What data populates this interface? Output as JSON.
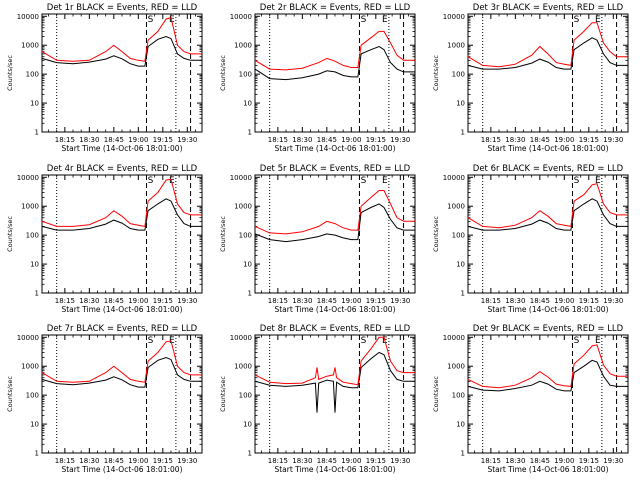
{
  "colors": {
    "events": "#000000",
    "lld": "#ff0000",
    "axes": "#000000",
    "background": "#ffffff"
  },
  "shared": {
    "ylabel": "Counts/sec",
    "xlabel": "Start Time (14-Oct-06 18:01:00)",
    "x_tick_labels": [
      "18:15",
      "18:30",
      "18:45",
      "19:00",
      "19:15",
      "19:30"
    ],
    "y_tick_labels": [
      "1",
      "10",
      "100",
      "1000",
      "10000"
    ],
    "y_scale": "log",
    "ylim": [
      1,
      12000
    ],
    "xlim": [
      "18:01",
      "19:39"
    ],
    "marker_labels": [
      "S",
      "E"
    ],
    "dotted_lines_at": [
      "18:10",
      "19:23"
    ],
    "dashed_lines_at": [
      "19:05",
      "19:32"
    ]
  },
  "chart_data": [
    {
      "type": "line",
      "title": "Det 1r BLACK = Events, RED = LLD",
      "x": [
        "18:01",
        "18:10",
        "18:20",
        "18:30",
        "18:40",
        "18:45",
        "18:50",
        "18:55",
        "19:00",
        "19:04",
        "19:06",
        "19:12",
        "19:17",
        "19:20",
        "19:24",
        "19:28",
        "19:32",
        "19:36",
        "19:39"
      ],
      "series": [
        {
          "name": "BLACK = Events",
          "values": [
            350,
            250,
            230,
            260,
            330,
            430,
            340,
            230,
            190,
            190,
            900,
            1600,
            2000,
            1700,
            500,
            350,
            300,
            300,
            300
          ]
        },
        {
          "name": "RED = LLD",
          "values": [
            600,
            300,
            280,
            300,
            600,
            1000,
            600,
            350,
            300,
            280,
            1500,
            3000,
            8000,
            9000,
            1000,
            600,
            500,
            500,
            500
          ]
        }
      ]
    },
    {
      "type": "line",
      "title": "Det 2r BLACK = Events, RED = LLD",
      "x": [
        "18:01",
        "18:10",
        "18:20",
        "18:30",
        "18:40",
        "18:45",
        "18:50",
        "18:55",
        "19:00",
        "19:04",
        "19:06",
        "19:12",
        "19:17",
        "19:20",
        "19:24",
        "19:28",
        "19:32",
        "19:36",
        "19:39"
      ],
      "series": [
        {
          "name": "BLACK = Events",
          "values": [
            150,
            70,
            65,
            75,
            100,
            130,
            120,
            90,
            80,
            80,
            500,
            700,
            900,
            700,
            250,
            150,
            120,
            120,
            120
          ]
        },
        {
          "name": "RED = LLD",
          "values": [
            300,
            150,
            140,
            160,
            250,
            350,
            280,
            200,
            170,
            170,
            1000,
            1800,
            3000,
            3000,
            1200,
            450,
            300,
            300,
            300
          ]
        }
      ]
    },
    {
      "type": "line",
      "title": "Det 3r BLACK = Events, RED = LLD",
      "x": [
        "18:01",
        "18:10",
        "18:20",
        "18:30",
        "18:40",
        "18:45",
        "18:50",
        "18:55",
        "19:00",
        "19:04",
        "19:06",
        "19:12",
        "19:17",
        "19:20",
        "19:24",
        "19:28",
        "19:32",
        "19:36",
        "19:39"
      ],
      "series": [
        {
          "name": "BLACK = Events",
          "values": [
            200,
            150,
            150,
            170,
            240,
            330,
            260,
            170,
            150,
            150,
            700,
            1200,
            1800,
            1500,
            500,
            250,
            200,
            200,
            200
          ]
        },
        {
          "name": "RED = LLD",
          "values": [
            400,
            200,
            180,
            220,
            450,
            900,
            500,
            250,
            220,
            200,
            1500,
            3000,
            6000,
            6000,
            1200,
            600,
            400,
            400,
            400
          ]
        }
      ]
    },
    {
      "type": "line",
      "title": "Det 4r BLACK = Events, RED = LLD",
      "x": [
        "18:01",
        "18:10",
        "18:20",
        "18:30",
        "18:40",
        "18:45",
        "18:50",
        "18:55",
        "19:00",
        "19:04",
        "19:06",
        "19:12",
        "19:17",
        "19:20",
        "19:24",
        "19:28",
        "19:32",
        "19:36",
        "19:39"
      ],
      "series": [
        {
          "name": "BLACK = Events",
          "values": [
            200,
            150,
            150,
            170,
            240,
            330,
            260,
            170,
            150,
            150,
            700,
            1200,
            1800,
            1500,
            500,
            250,
            200,
            200,
            200
          ]
        },
        {
          "name": "RED = LLD",
          "values": [
            300,
            200,
            200,
            230,
            400,
            700,
            450,
            250,
            220,
            200,
            1500,
            3000,
            8000,
            8500,
            1200,
            600,
            500,
            500,
            500
          ]
        }
      ]
    },
    {
      "type": "line",
      "title": "Det 5r BLACK = Events, RED = LLD",
      "x": [
        "18:01",
        "18:10",
        "18:20",
        "18:30",
        "18:40",
        "18:45",
        "18:50",
        "18:55",
        "19:00",
        "19:04",
        "19:06",
        "19:12",
        "19:17",
        "19:20",
        "19:24",
        "19:28",
        "19:32",
        "19:36",
        "19:39"
      ],
      "series": [
        {
          "name": "BLACK = Events",
          "values": [
            110,
            70,
            60,
            70,
            90,
            110,
            100,
            80,
            70,
            70,
            600,
            900,
            1200,
            900,
            350,
            180,
            150,
            150,
            150
          ]
        },
        {
          "name": "RED = LLD",
          "values": [
            200,
            120,
            110,
            130,
            200,
            300,
            250,
            180,
            150,
            150,
            1000,
            2000,
            3500,
            3500,
            1200,
            400,
            300,
            300,
            300
          ]
        }
      ]
    },
    {
      "type": "line",
      "title": "Det 6r BLACK = Events, RED = LLD",
      "x": [
        "18:01",
        "18:10",
        "18:20",
        "18:30",
        "18:40",
        "18:45",
        "18:50",
        "18:55",
        "19:00",
        "19:04",
        "19:06",
        "19:12",
        "19:17",
        "19:20",
        "19:24",
        "19:28",
        "19:32",
        "19:36",
        "19:39"
      ],
      "series": [
        {
          "name": "BLACK = Events",
          "values": [
            200,
            150,
            150,
            170,
            240,
            330,
            260,
            170,
            150,
            150,
            700,
            1200,
            1800,
            1500,
            500,
            250,
            200,
            200,
            200
          ]
        },
        {
          "name": "RED = LLD",
          "values": [
            400,
            200,
            180,
            220,
            400,
            700,
            450,
            250,
            220,
            200,
            1500,
            2500,
            5500,
            6000,
            1200,
            600,
            500,
            500,
            500
          ]
        }
      ]
    },
    {
      "type": "line",
      "title": "Det 7r BLACK = Events, RED = LLD",
      "x": [
        "18:01",
        "18:10",
        "18:20",
        "18:30",
        "18:40",
        "18:45",
        "18:50",
        "18:55",
        "19:00",
        "19:04",
        "19:06",
        "19:12",
        "19:17",
        "19:20",
        "19:24",
        "19:28",
        "19:32",
        "19:36",
        "19:39"
      ],
      "series": [
        {
          "name": "BLACK = Events",
          "values": [
            350,
            250,
            230,
            260,
            330,
            430,
            340,
            230,
            190,
            190,
            900,
            1600,
            2000,
            1700,
            500,
            350,
            300,
            300,
            300
          ]
        },
        {
          "name": "RED = LLD",
          "values": [
            600,
            300,
            280,
            300,
            600,
            1000,
            600,
            350,
            300,
            280,
            1500,
            3000,
            7000,
            7500,
            1000,
            600,
            500,
            500,
            500
          ]
        }
      ]
    },
    {
      "type": "line",
      "title": "Det 8r BLACK = Events, RED = LLD",
      "x": [
        "18:01",
        "18:10",
        "18:20",
        "18:30",
        "18:38",
        "18:39",
        "18:40",
        "18:45",
        "18:49",
        "18:50",
        "18:51",
        "18:55",
        "19:00",
        "19:04",
        "19:06",
        "19:12",
        "19:17",
        "19:20",
        "19:24",
        "19:28",
        "19:32",
        "19:36",
        "19:39"
      ],
      "series": [
        {
          "name": "BLACK = Events",
          "values": [
            300,
            220,
            200,
            220,
            260,
            25,
            260,
            330,
            300,
            25,
            280,
            200,
            180,
            180,
            900,
            1800,
            3000,
            2500,
            700,
            350,
            300,
            300,
            300
          ]
        },
        {
          "name": "RED = LLD",
          "values": [
            500,
            280,
            250,
            260,
            400,
            900,
            350,
            450,
            500,
            900,
            400,
            280,
            250,
            230,
            1500,
            4000,
            10000,
            10000,
            1500,
            700,
            600,
            600,
            600
          ]
        }
      ]
    },
    {
      "type": "line",
      "title": "Det 9r BLACK = Events, RED = LLD",
      "x": [
        "18:01",
        "18:10",
        "18:20",
        "18:30",
        "18:40",
        "18:45",
        "18:50",
        "18:55",
        "19:00",
        "19:04",
        "19:06",
        "19:12",
        "19:17",
        "19:20",
        "19:24",
        "19:28",
        "19:32",
        "19:36",
        "19:39"
      ],
      "series": [
        {
          "name": "BLACK = Events",
          "values": [
            200,
            150,
            140,
            170,
            220,
            300,
            240,
            160,
            140,
            140,
            600,
            1000,
            1600,
            1400,
            450,
            220,
            200,
            200,
            200
          ]
        },
        {
          "name": "RED = LLD",
          "values": [
            350,
            200,
            180,
            220,
            400,
            650,
            420,
            240,
            210,
            200,
            1200,
            2400,
            5000,
            5500,
            1100,
            550,
            450,
            450,
            450
          ]
        }
      ]
    }
  ]
}
